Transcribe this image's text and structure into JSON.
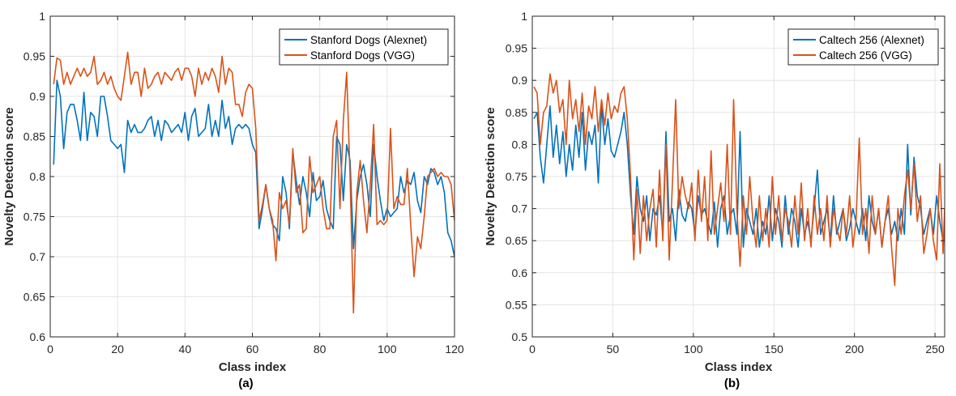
{
  "chart_data": [
    {
      "type": "line",
      "panel_label": "(a)",
      "xlabel": "Class index",
      "ylabel": "Novelty Detection score",
      "xlim": [
        0,
        120
      ],
      "ylim": [
        0.6,
        1.0
      ],
      "xticks": [
        0,
        20,
        40,
        60,
        80,
        100,
        120
      ],
      "yticks": [
        0.6,
        0.65,
        0.7,
        0.75,
        0.8,
        0.85,
        0.9,
        0.95,
        1.0
      ],
      "grid": true,
      "legend_position": "top-right",
      "series": [
        {
          "name": "Stanford Dogs (Alexnet)",
          "color": "#0072BD",
          "x": [
            1,
            2,
            3,
            4,
            5,
            6,
            7,
            8,
            9,
            10,
            11,
            12,
            13,
            14,
            15,
            16,
            17,
            18,
            19,
            20,
            21,
            22,
            23,
            24,
            25,
            26,
            27,
            28,
            29,
            30,
            31,
            32,
            33,
            34,
            35,
            36,
            37,
            38,
            39,
            40,
            41,
            42,
            43,
            44,
            45,
            46,
            47,
            48,
            49,
            50,
            51,
            52,
            53,
            54,
            55,
            56,
            57,
            58,
            59,
            60,
            61,
            62,
            63,
            64,
            65,
            66,
            67,
            68,
            69,
            70,
            71,
            72,
            73,
            74,
            75,
            76,
            77,
            78,
            79,
            80,
            81,
            82,
            83,
            84,
            85,
            86,
            87,
            88,
            89,
            90,
            91,
            92,
            93,
            94,
            95,
            96,
            97,
            98,
            99,
            100,
            101,
            102,
            103,
            104,
            105,
            106,
            107,
            108,
            109,
            110,
            111,
            112,
            113,
            114,
            115,
            116,
            117,
            118,
            119,
            120
          ],
          "values": [
            0.815,
            0.92,
            0.9,
            0.835,
            0.88,
            0.89,
            0.89,
            0.87,
            0.845,
            0.905,
            0.845,
            0.88,
            0.875,
            0.85,
            0.9,
            0.9,
            0.875,
            0.845,
            0.84,
            0.835,
            0.84,
            0.805,
            0.87,
            0.855,
            0.865,
            0.855,
            0.855,
            0.86,
            0.87,
            0.875,
            0.85,
            0.87,
            0.845,
            0.87,
            0.865,
            0.855,
            0.86,
            0.865,
            0.855,
            0.88,
            0.845,
            0.875,
            0.885,
            0.85,
            0.855,
            0.86,
            0.89,
            0.85,
            0.87,
            0.85,
            0.895,
            0.86,
            0.875,
            0.84,
            0.86,
            0.865,
            0.86,
            0.865,
            0.86,
            0.84,
            0.83,
            0.735,
            0.76,
            0.79,
            0.76,
            0.74,
            0.735,
            0.72,
            0.8,
            0.78,
            0.735,
            0.83,
            0.795,
            0.765,
            0.8,
            0.78,
            0.75,
            0.805,
            0.77,
            0.775,
            0.795,
            0.76,
            0.745,
            0.735,
            0.85,
            0.84,
            0.77,
            0.84,
            0.82,
            0.71,
            0.77,
            0.8,
            0.815,
            0.79,
            0.75,
            0.84,
            0.8,
            0.77,
            0.745,
            0.76,
            0.75,
            0.755,
            0.76,
            0.8,
            0.78,
            0.795,
            0.79,
            0.805,
            0.77,
            0.755,
            0.8,
            0.79,
            0.81,
            0.805,
            0.79,
            0.8,
            0.78,
            0.73,
            0.72,
            0.7
          ]
        },
        {
          "name": "Stanford Dogs (VGG)",
          "color": "#D95319",
          "x": [
            1,
            2,
            3,
            4,
            5,
            6,
            7,
            8,
            9,
            10,
            11,
            12,
            13,
            14,
            15,
            16,
            17,
            18,
            19,
            20,
            21,
            22,
            23,
            24,
            25,
            26,
            27,
            28,
            29,
            30,
            31,
            32,
            33,
            34,
            35,
            36,
            37,
            38,
            39,
            40,
            41,
            42,
            43,
            44,
            45,
            46,
            47,
            48,
            49,
            50,
            51,
            52,
            53,
            54,
            55,
            56,
            57,
            58,
            59,
            60,
            61,
            62,
            63,
            64,
            65,
            66,
            67,
            68,
            69,
            70,
            71,
            72,
            73,
            74,
            75,
            76,
            77,
            78,
            79,
            80,
            81,
            82,
            83,
            84,
            85,
            86,
            87,
            88,
            89,
            90,
            91,
            92,
            93,
            94,
            95,
            96,
            97,
            98,
            99,
            100,
            101,
            102,
            103,
            104,
            105,
            106,
            107,
            108,
            109,
            110,
            111,
            112,
            113,
            114,
            115,
            116,
            117,
            118,
            119,
            120
          ],
          "values": [
            0.915,
            0.948,
            0.945,
            0.915,
            0.93,
            0.915,
            0.925,
            0.935,
            0.925,
            0.935,
            0.925,
            0.93,
            0.95,
            0.915,
            0.92,
            0.93,
            0.915,
            0.925,
            0.91,
            0.9,
            0.895,
            0.925,
            0.955,
            0.915,
            0.93,
            0.93,
            0.9,
            0.935,
            0.91,
            0.915,
            0.925,
            0.93,
            0.915,
            0.93,
            0.925,
            0.92,
            0.93,
            0.935,
            0.92,
            0.935,
            0.935,
            0.925,
            0.9,
            0.935,
            0.915,
            0.93,
            0.92,
            0.935,
            0.925,
            0.905,
            0.95,
            0.915,
            0.935,
            0.93,
            0.89,
            0.89,
            0.875,
            0.905,
            0.915,
            0.91,
            0.86,
            0.745,
            0.765,
            0.79,
            0.76,
            0.745,
            0.695,
            0.78,
            0.76,
            0.77,
            0.74,
            0.835,
            0.78,
            0.79,
            0.73,
            0.735,
            0.825,
            0.78,
            0.79,
            0.8,
            0.76,
            0.735,
            0.735,
            0.85,
            0.87,
            0.76,
            0.87,
            0.93,
            0.8,
            0.63,
            0.78,
            0.82,
            0.77,
            0.73,
            0.79,
            0.865,
            0.74,
            0.745,
            0.74,
            0.745,
            0.86,
            0.76,
            0.775,
            0.765,
            0.765,
            0.81,
            0.74,
            0.675,
            0.725,
            0.71,
            0.75,
            0.8,
            0.805,
            0.81,
            0.8,
            0.805,
            0.8,
            0.8,
            0.79,
            0.745
          ]
        }
      ]
    },
    {
      "type": "line",
      "panel_label": "(b)",
      "xlabel": "Class index",
      "ylabel": "Novelty Detection score",
      "xlim": [
        0,
        256
      ],
      "ylim": [
        0.5,
        1.0
      ],
      "xticks": [
        0,
        50,
        100,
        150,
        200,
        250
      ],
      "yticks": [
        0.5,
        0.55,
        0.6,
        0.65,
        0.7,
        0.75,
        0.8,
        0.85,
        0.9,
        0.95,
        1.0
      ],
      "grid": true,
      "legend_position": "top-right",
      "series": [
        {
          "name": "Caltech 256 (Alexnet)",
          "color": "#0072BD",
          "x": [
            1,
            3,
            5,
            7,
            9,
            11,
            13,
            15,
            17,
            19,
            21,
            23,
            25,
            27,
            29,
            31,
            33,
            35,
            37,
            39,
            41,
            43,
            45,
            47,
            49,
            51,
            53,
            55,
            57,
            59,
            61,
            63,
            65,
            67,
            69,
            71,
            73,
            75,
            77,
            79,
            81,
            83,
            85,
            87,
            89,
            91,
            93,
            95,
            97,
            99,
            101,
            103,
            105,
            107,
            109,
            111,
            113,
            115,
            117,
            119,
            121,
            123,
            125,
            127,
            129,
            131,
            133,
            135,
            137,
            139,
            141,
            143,
            145,
            147,
            149,
            151,
            153,
            155,
            157,
            159,
            161,
            163,
            165,
            167,
            169,
            171,
            173,
            175,
            177,
            179,
            181,
            183,
            185,
            187,
            189,
            191,
            193,
            195,
            197,
            199,
            201,
            203,
            205,
            207,
            209,
            211,
            213,
            215,
            217,
            219,
            221,
            223,
            225,
            227,
            229,
            231,
            233,
            235,
            237,
            239,
            241,
            243,
            245,
            247,
            249,
            251,
            253,
            255,
            256
          ],
          "values": [
            0.84,
            0.85,
            0.78,
            0.74,
            0.8,
            0.86,
            0.78,
            0.83,
            0.77,
            0.82,
            0.75,
            0.8,
            0.76,
            0.83,
            0.78,
            0.85,
            0.76,
            0.82,
            0.8,
            0.83,
            0.74,
            0.86,
            0.8,
            0.84,
            0.79,
            0.78,
            0.8,
            0.82,
            0.85,
            0.8,
            0.72,
            0.66,
            0.75,
            0.7,
            0.68,
            0.72,
            0.65,
            0.7,
            0.69,
            0.72,
            0.66,
            0.82,
            0.68,
            0.7,
            0.65,
            0.73,
            0.69,
            0.68,
            0.71,
            0.7,
            0.66,
            0.72,
            0.69,
            0.7,
            0.68,
            0.66,
            0.71,
            0.64,
            0.7,
            0.72,
            0.66,
            0.69,
            0.7,
            0.66,
            0.82,
            0.64,
            0.7,
            0.68,
            0.66,
            0.7,
            0.64,
            0.68,
            0.66,
            0.72,
            0.65,
            0.7,
            0.68,
            0.64,
            0.72,
            0.66,
            0.7,
            0.68,
            0.64,
            0.7,
            0.66,
            0.68,
            0.65,
            0.7,
            0.76,
            0.66,
            0.68,
            0.7,
            0.65,
            0.72,
            0.66,
            0.68,
            0.7,
            0.65,
            0.67,
            0.7,
            0.68,
            0.66,
            0.7,
            0.65,
            0.72,
            0.68,
            0.66,
            0.7,
            0.64,
            0.68,
            0.7,
            0.66,
            0.68,
            0.65,
            0.7,
            0.66,
            0.8,
            0.69,
            0.78,
            0.72,
            0.7,
            0.66,
            0.68,
            0.7,
            0.66,
            0.72,
            0.68,
            0.65,
            0.66
          ]
        },
        {
          "name": "Caltech 256 (VGG)",
          "color": "#D95319",
          "x": [
            1,
            3,
            5,
            7,
            9,
            11,
            13,
            15,
            17,
            19,
            21,
            23,
            25,
            27,
            29,
            31,
            33,
            35,
            37,
            39,
            41,
            43,
            45,
            47,
            49,
            51,
            53,
            55,
            57,
            59,
            61,
            63,
            65,
            67,
            69,
            71,
            73,
            75,
            77,
            79,
            81,
            83,
            85,
            87,
            89,
            91,
            93,
            95,
            97,
            99,
            101,
            103,
            105,
            107,
            109,
            111,
            113,
            115,
            117,
            119,
            121,
            123,
            125,
            127,
            129,
            131,
            133,
            135,
            137,
            139,
            141,
            143,
            145,
            147,
            149,
            151,
            153,
            155,
            157,
            159,
            161,
            163,
            165,
            167,
            169,
            171,
            173,
            175,
            177,
            179,
            181,
            183,
            185,
            187,
            189,
            191,
            193,
            195,
            197,
            199,
            201,
            203,
            205,
            207,
            209,
            211,
            213,
            215,
            217,
            219,
            221,
            223,
            225,
            227,
            229,
            231,
            233,
            235,
            237,
            239,
            241,
            243,
            245,
            247,
            249,
            251,
            253,
            255,
            256
          ],
          "values": [
            0.89,
            0.88,
            0.8,
            0.85,
            0.86,
            0.91,
            0.88,
            0.9,
            0.85,
            0.87,
            0.8,
            0.9,
            0.84,
            0.87,
            0.82,
            0.88,
            0.8,
            0.86,
            0.84,
            0.89,
            0.82,
            0.87,
            0.83,
            0.88,
            0.84,
            0.86,
            0.85,
            0.88,
            0.89,
            0.84,
            0.75,
            0.62,
            0.73,
            0.63,
            0.72,
            0.65,
            0.7,
            0.73,
            0.64,
            0.76,
            0.65,
            0.8,
            0.62,
            0.74,
            0.87,
            0.7,
            0.75,
            0.72,
            0.7,
            0.74,
            0.65,
            0.76,
            0.68,
            0.75,
            0.65,
            0.79,
            0.66,
            0.7,
            0.74,
            0.68,
            0.8,
            0.66,
            0.87,
            0.7,
            0.61,
            0.72,
            0.66,
            0.75,
            0.68,
            0.64,
            0.72,
            0.65,
            0.7,
            0.64,
            0.75,
            0.66,
            0.72,
            0.65,
            0.7,
            0.68,
            0.64,
            0.72,
            0.66,
            0.74,
            0.65,
            0.7,
            0.64,
            0.72,
            0.66,
            0.7,
            0.65,
            0.72,
            0.64,
            0.7,
            0.67,
            0.65,
            0.7,
            0.66,
            0.72,
            0.64,
            0.68,
            0.81,
            0.66,
            0.7,
            0.63,
            0.72,
            0.66,
            0.7,
            0.64,
            0.68,
            0.72,
            0.64,
            0.58,
            0.7,
            0.66,
            0.72,
            0.76,
            0.7,
            0.77,
            0.68,
            0.72,
            0.63,
            0.66,
            0.7,
            0.65,
            0.62,
            0.77,
            0.63,
            0.7
          ]
        }
      ]
    }
  ]
}
